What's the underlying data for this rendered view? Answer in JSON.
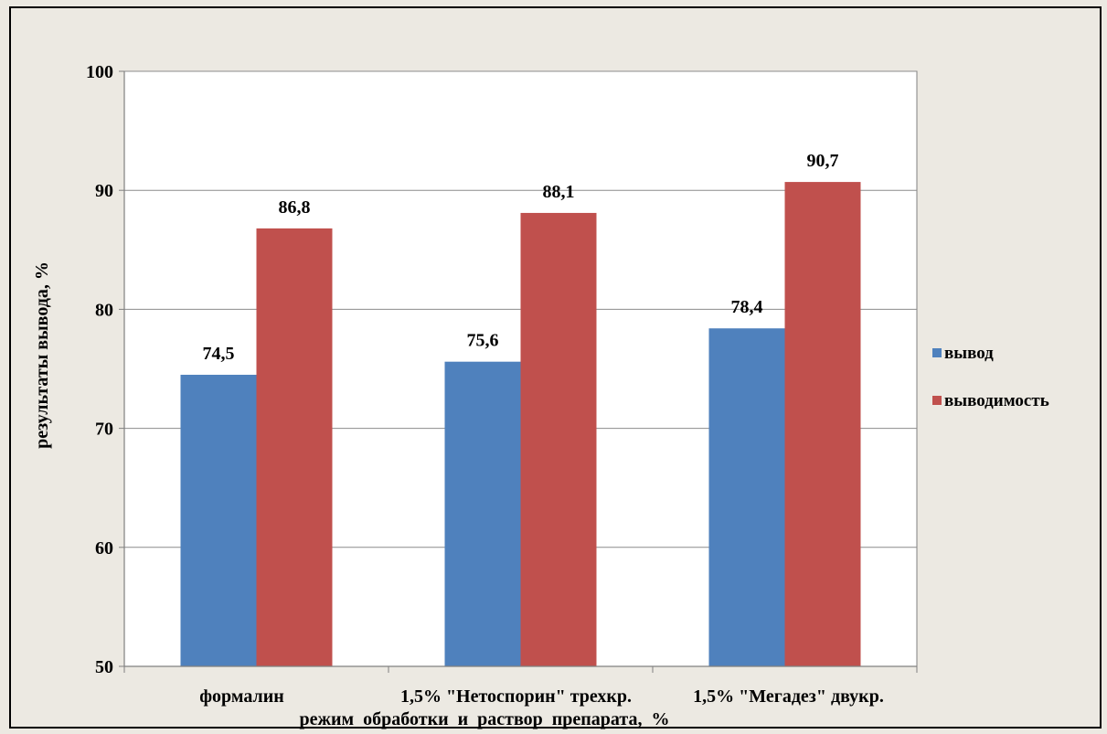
{
  "chart_data": {
    "type": "bar",
    "categories": [
      "формалин",
      "1,5% \"Нетоспорин\" трехкр.",
      "1,5% \"Мегадез\" двукр."
    ],
    "series": [
      {
        "name": "вывод",
        "values": [
          74.5,
          75.6,
          78.4
        ],
        "labels": [
          "74,5",
          "75,6",
          "78,4"
        ],
        "color": "#4f81bd"
      },
      {
        "name": "выводимость",
        "values": [
          86.8,
          88.1,
          90.7
        ],
        "labels": [
          "86,8",
          "88,1",
          "90,7"
        ],
        "color": "#c0504d"
      }
    ],
    "title": "",
    "xlabel": "режим  обработки  и  раствор  препарата,  %",
    "ylabel": "результаты  вывода,  %",
    "ylim": [
      50,
      100
    ],
    "yticks": [
      50,
      60,
      70,
      80,
      90,
      100
    ],
    "grid": true,
    "legend_position": "right"
  }
}
